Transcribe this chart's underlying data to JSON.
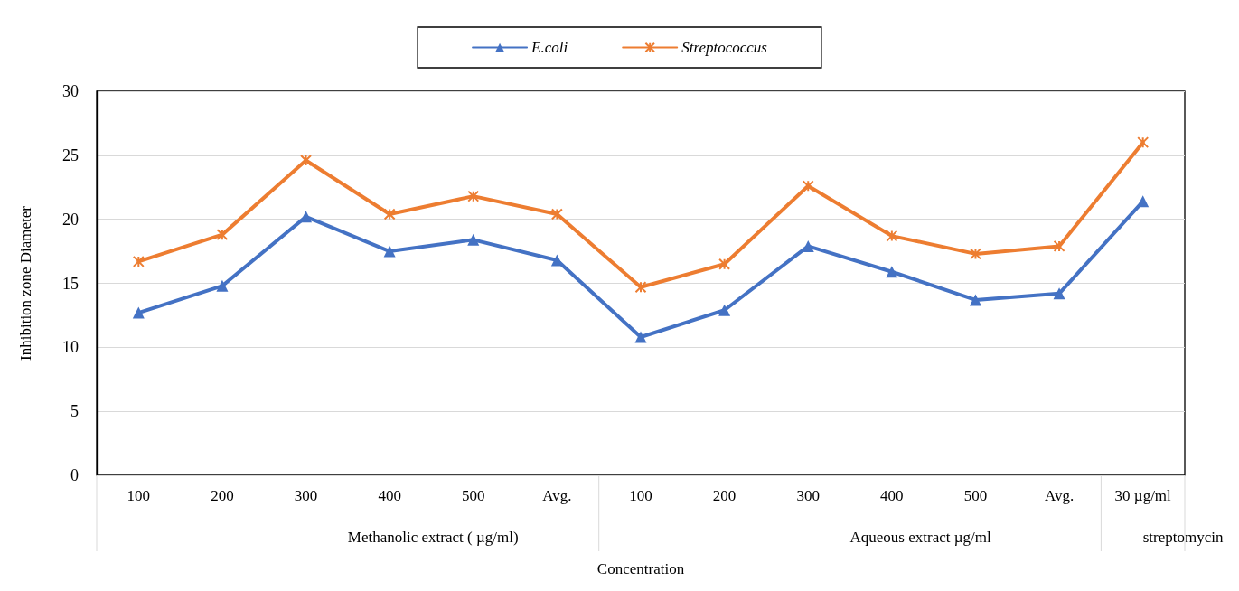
{
  "chart_data": {
    "type": "line",
    "xlabel": "Concentration",
    "ylabel": "Inhibition zone Diameter",
    "categories": [
      "100",
      "200",
      "300",
      "400",
      "500",
      "Avg.",
      "100",
      "200",
      "300",
      "400",
      "500",
      "Avg.",
      "30 µg/ml"
    ],
    "series": [
      {
        "name": "E.coli",
        "color": "#4472c4",
        "marker": "triangle",
        "values": [
          12.7,
          14.8,
          20.2,
          17.5,
          18.4,
          16.8,
          10.8,
          12.9,
          17.9,
          15.9,
          13.7,
          14.2,
          21.4
        ]
      },
      {
        "name": "Streptococcus",
        "color": "#ed7d31",
        "marker": "cross",
        "values": [
          16.7,
          18.8,
          24.6,
          20.4,
          21.8,
          20.4,
          14.7,
          16.5,
          22.6,
          18.7,
          17.3,
          17.9,
          26.0
        ]
      }
    ],
    "annotations": [
      "Methanolic extract ( µg/ml)",
      "Aqueous extract µg/ml",
      "streptomycin"
    ],
    "ylim": [
      0,
      30
    ],
    "yticks": [
      0,
      5,
      10,
      15,
      20,
      25,
      30
    ],
    "grid": "y",
    "legend": "top",
    "line_style": "solid"
  }
}
